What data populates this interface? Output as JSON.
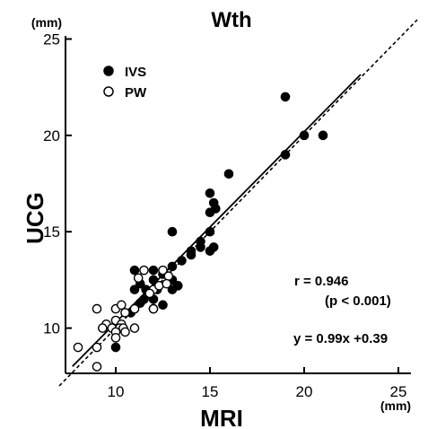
{
  "chart_data": {
    "type": "scatter",
    "title": "Wth",
    "xlabel": "MRI",
    "ylabel": "UCG",
    "x_unit": "(mm)",
    "y_unit": "(mm)",
    "xlim": [
      7,
      26
    ],
    "ylim": [
      7,
      26
    ],
    "xticks": [
      10,
      15,
      20,
      25
    ],
    "yticks": [
      10,
      15,
      20,
      25
    ],
    "grid": false,
    "legend_position": "top-left",
    "annotations": {
      "r": "r = 0.946",
      "p": "(p < 0.001)",
      "equation": "y = 0.99x +0.39"
    },
    "series": [
      {
        "name": "IVS",
        "marker": "filled-circle",
        "color": "#000000",
        "points": [
          [
            19,
            22
          ],
          [
            20,
            20
          ],
          [
            21,
            20
          ],
          [
            19,
            19
          ],
          [
            16,
            18
          ],
          [
            15,
            17
          ],
          [
            15.2,
            16.5
          ],
          [
            15,
            16
          ],
          [
            15.3,
            16.2
          ],
          [
            13,
            15
          ],
          [
            15,
            15
          ],
          [
            14.5,
            14.5
          ],
          [
            15,
            14
          ],
          [
            15.2,
            14.2
          ],
          [
            14,
            14
          ],
          [
            14.5,
            14.2
          ],
          [
            13,
            13.2
          ],
          [
            12,
            13
          ],
          [
            11,
            13
          ],
          [
            13.5,
            13.5
          ],
          [
            14,
            13.8
          ],
          [
            12.5,
            12.8
          ],
          [
            13,
            12.5
          ],
          [
            13.3,
            12.2
          ],
          [
            12,
            12.5
          ],
          [
            11.3,
            12.3
          ],
          [
            11.6,
            12
          ],
          [
            12.2,
            12
          ],
          [
            11,
            12
          ],
          [
            12,
            11.5
          ],
          [
            11.5,
            11.5
          ],
          [
            13,
            12
          ],
          [
            11,
            11
          ],
          [
            12,
            11
          ],
          [
            12.5,
            11.2
          ],
          [
            11.3,
            11.3
          ],
          [
            10.8,
            10.8
          ],
          [
            10,
            9
          ]
        ]
      },
      {
        "name": "PW",
        "marker": "open-circle",
        "color": "#000000",
        "points": [
          [
            11.5,
            13
          ],
          [
            12.5,
            13
          ],
          [
            12.8,
            12.7
          ],
          [
            12,
            12
          ],
          [
            11.8,
            11.8
          ],
          [
            12.3,
            12.2
          ],
          [
            12.7,
            12.3
          ],
          [
            11.2,
            12.6
          ],
          [
            10,
            11
          ],
          [
            10.3,
            11.2
          ],
          [
            9,
            11
          ],
          [
            10.5,
            10.8
          ],
          [
            11,
            11
          ],
          [
            12,
            11
          ],
          [
            9.5,
            10.2
          ],
          [
            10,
            10.4
          ],
          [
            10.3,
            10.2
          ],
          [
            9.8,
            10
          ],
          [
            10.2,
            10
          ],
          [
            10.4,
            10
          ],
          [
            10,
            9.8
          ],
          [
            9.3,
            10
          ],
          [
            11,
            10
          ],
          [
            10.5,
            9.8
          ],
          [
            8,
            9
          ],
          [
            9,
            9
          ],
          [
            10,
            9.5
          ],
          [
            9,
            8
          ]
        ]
      }
    ],
    "lines": [
      {
        "name": "regression",
        "style": "solid",
        "slope": 0.99,
        "intercept": 0.39,
        "x_range": [
          7.7,
          23
        ]
      },
      {
        "name": "identity",
        "style": "dashed",
        "slope": 1,
        "intercept": 0,
        "x_range": [
          7,
          26
        ]
      }
    ]
  }
}
